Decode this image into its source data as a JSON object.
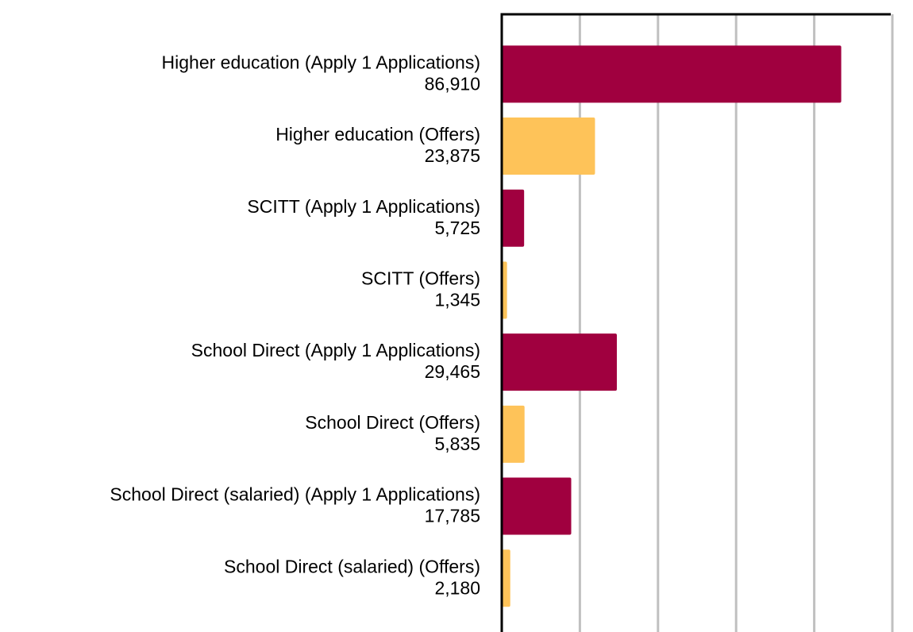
{
  "chart_data": {
    "type": "bar",
    "orientation": "horizontal",
    "categories": [
      "Higher education (Apply 1 Applications)",
      "Higher education (Offers)",
      "SCITT (Apply 1 Applications)",
      "SCITT (Offers)",
      "School Direct (Apply 1 Applications)",
      "School Direct (Offers)",
      "School Direct (salaried) (Apply 1 Applications)",
      "School Direct (salaried) (Offers)"
    ],
    "values": [
      86910,
      23875,
      5725,
      1345,
      29465,
      5835,
      17785,
      2180
    ],
    "value_labels": [
      "86,910",
      "23,875",
      "5,725",
      "1,345",
      "29,465",
      "5,835",
      "17,785",
      "2,180"
    ],
    "colors": [
      "#a0003f",
      "#fec359",
      "#a0003f",
      "#fec359",
      "#a0003f",
      "#fec359",
      "#a0003f",
      "#fec359"
    ],
    "xlim": [
      0,
      100000
    ],
    "xticks": [
      0,
      20000,
      40000,
      60000,
      80000,
      100000
    ],
    "grid": true
  }
}
